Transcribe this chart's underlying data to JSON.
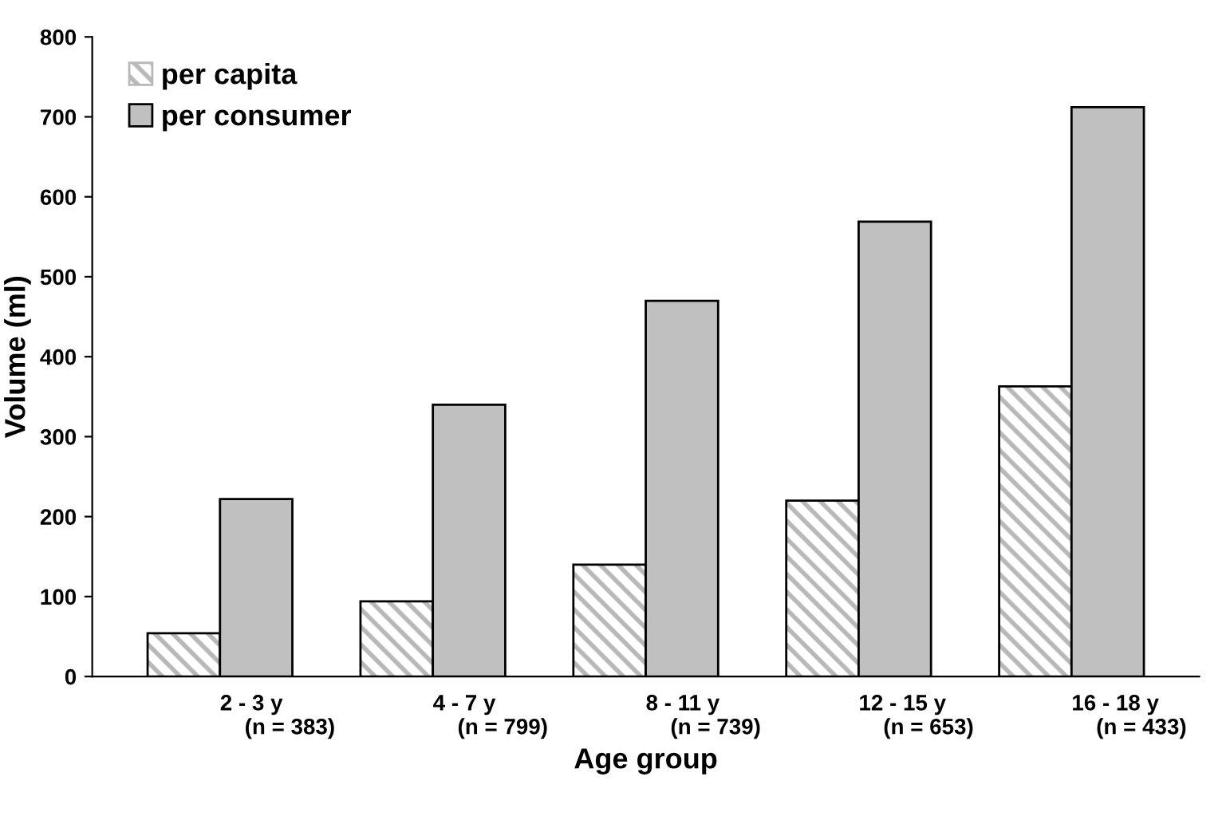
{
  "chart_data": {
    "type": "bar",
    "xlabel": "Age group",
    "ylabel": "Volume (ml)",
    "categories": [
      "2 - 3 y\n    (n = 383)",
      "4 - 7 y\n    (n = 799)",
      "8 - 11 y\n    (n = 739)",
      "12 - 15 y\n    (n = 653)",
      "16 - 18 y\n    (n = 433)"
    ],
    "series": [
      {
        "name": "per capita",
        "color": "#b8b8b8",
        "values": [
          54,
          94,
          140,
          220,
          363
        ]
      },
      {
        "name": "per consumer",
        "color": "#c0c0c0",
        "values": [
          222,
          340,
          470,
          569,
          712
        ]
      }
    ],
    "ylim": [
      0,
      800
    ],
    "yticks": [
      0,
      100,
      200,
      300,
      400,
      500,
      600,
      700,
      800
    ],
    "grid": false,
    "legend": "top left"
  }
}
